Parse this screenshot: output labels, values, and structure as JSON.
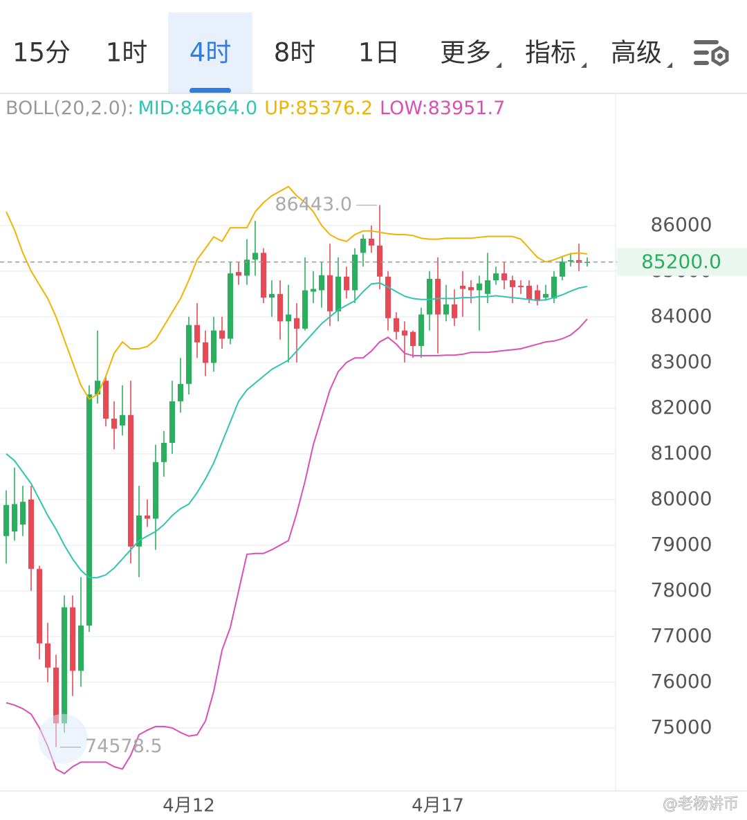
{
  "tabs": [
    {
      "label": "15分"
    },
    {
      "label": "1时"
    },
    {
      "label": "4时"
    },
    {
      "label": "8时"
    },
    {
      "label": "1日"
    },
    {
      "label": "更多",
      "dropdown": true
    },
    {
      "label": "指标",
      "dropdown": true
    },
    {
      "label": "高级",
      "dropdown": true
    }
  ],
  "active_tab": 2,
  "watermark": "@老杨讲币",
  "chart_data": {
    "type": "candlestick",
    "indicator": "BOLL(20,2.0):",
    "categories": [
      null,
      null,
      null,
      null,
      null,
      null,
      null,
      null,
      null,
      null,
      null,
      null,
      null,
      null,
      null,
      null,
      null,
      null,
      null,
      null,
      null,
      null,
      "4月12",
      null,
      null,
      null,
      null,
      null,
      null,
      null,
      null,
      null,
      null,
      null,
      null,
      null,
      null,
      null,
      null,
      null,
      null,
      null,
      null,
      null,
      null,
      null,
      null,
      null,
      null,
      null,
      null,
      null,
      "4月17",
      null,
      null,
      null,
      null,
      null,
      null,
      null,
      null,
      null,
      null,
      null,
      null,
      null,
      null,
      null,
      null,
      null,
      null
    ],
    "open": [
      79200,
      79300,
      79450,
      80000,
      78480,
      76850,
      76320,
      75100,
      77640,
      76250,
      77240,
      82300,
      82600,
      81770,
      81620,
      81850,
      78970,
      79650,
      79580,
      80820,
      81240,
      82150,
      82530,
      83820,
      83440,
      82990,
      83700,
      83520,
      84980,
      84900,
      85250,
      85400,
      84420,
      84500,
      83900,
      83970,
      83740,
      84550,
      84580,
      84910,
      84120,
      84880,
      84580,
      85400,
      85710,
      85560,
      84880,
      83970,
      83700,
      83670,
      83360,
      84050,
      84830,
      84050,
      84270,
      84680,
      84650,
      84580,
      84500,
      84800,
      84950,
      84800,
      84680,
      84680,
      84580,
      84420,
      84400,
      84880,
      85210,
      85240,
      85180
    ],
    "high": [
      80200,
      80700,
      80300,
      80300,
      78550,
      77300,
      76600,
      77900,
      77900,
      78300,
      82500,
      83700,
      82700,
      82150,
      82500,
      82600,
      80300,
      80000,
      81200,
      81500,
      82600,
      83100,
      84000,
      84300,
      83700,
      84000,
      84000,
      85200,
      85200,
      85700,
      86100,
      85500,
      84800,
      84800,
      84700,
      84300,
      85300,
      85000,
      85200,
      85600,
      85300,
      85100,
      85500,
      85800,
      86000,
      86443,
      85000,
      84100,
      83900,
      83700,
      84200,
      85000,
      85300,
      84700,
      84600,
      85000,
      84800,
      84900,
      85400,
      85100,
      85200,
      84900,
      84800,
      84800,
      84700,
      84700,
      85000,
      85300,
      85400,
      85600,
      85300
    ],
    "low": [
      78600,
      79100,
      79200,
      78000,
      76500,
      76000,
      74578.5,
      74900,
      75700,
      75900,
      77100,
      82100,
      81600,
      81100,
      81400,
      78600,
      78300,
      79400,
      78900,
      80500,
      81000,
      81900,
      82300,
      83100,
      82700,
      82800,
      83300,
      83400,
      84700,
      84700,
      84900,
      84300,
      84000,
      83500,
      83000,
      83000,
      83700,
      84300,
      84200,
      83800,
      83900,
      84400,
      84300,
      85100,
      85400,
      84600,
      83700,
      83500,
      83000,
      83100,
      83100,
      83700,
      83200,
      83900,
      83800,
      84000,
      84300,
      83700,
      84300,
      84700,
      84600,
      84300,
      84500,
      84300,
      84250,
      84350,
      84300,
      84800,
      85100,
      85000,
      85100
    ],
    "close": [
      79880,
      79900,
      79950,
      78480,
      76850,
      76320,
      75100,
      77640,
      76250,
      77240,
      82300,
      82600,
      81770,
      81550,
      81850,
      78970,
      79650,
      79580,
      80820,
      81240,
      82150,
      82530,
      83820,
      83440,
      82990,
      83700,
      83520,
      84950,
      84900,
      85250,
      85400,
      84420,
      84500,
      83900,
      84050,
      83740,
      84580,
      84610,
      84910,
      84120,
      84880,
      84580,
      85360,
      85710,
      85560,
      84880,
      83970,
      83670,
      83590,
      83360,
      84050,
      84830,
      84050,
      84270,
      83970,
      84610,
      84580,
      84730,
      84800,
      84950,
      84800,
      84650,
      84650,
      84380,
      84350,
      84500,
      84880,
      85210,
      85240,
      85180,
      85200
    ],
    "up_color": "#2aaf5e",
    "down_color": "#e84a55",
    "series": [
      {
        "label": "MID:84664.0",
        "color": "#2fc4b2",
        "values": [
          81000,
          80850,
          80600,
          80350,
          80000,
          79650,
          79350,
          79000,
          78700,
          78450,
          78290,
          78290,
          78350,
          78500,
          78700,
          78900,
          79100,
          79200,
          79300,
          79450,
          79650,
          79800,
          79900,
          80150,
          80450,
          80800,
          81250,
          81700,
          82150,
          82400,
          82550,
          82700,
          82850,
          82950,
          83050,
          83250,
          83450,
          83650,
          83850,
          84000,
          84150,
          84250,
          84350,
          84550,
          84720,
          84740,
          84650,
          84550,
          84450,
          84400,
          84380,
          84380,
          84400,
          84400,
          84400,
          84420,
          84420,
          84440,
          84440,
          84460,
          84440,
          84420,
          84400,
          84380,
          84360,
          84370,
          84420,
          84480,
          84560,
          84630,
          84664
        ]
      },
      {
        "label": "UP:85376.2",
        "color": "#f0b400",
        "values": [
          86300,
          85900,
          85400,
          85000,
          84700,
          84400,
          84000,
          83500,
          83000,
          82500,
          82200,
          82300,
          82700,
          83200,
          83450,
          83300,
          83300,
          83350,
          83500,
          83800,
          84100,
          84400,
          84800,
          85250,
          85500,
          85750,
          85650,
          85950,
          85950,
          85950,
          86300,
          86500,
          86650,
          86750,
          86850,
          86650,
          86500,
          86300,
          86000,
          85800,
          85700,
          85650,
          85800,
          85880,
          85880,
          85850,
          85820,
          85800,
          85800,
          85780,
          85720,
          85700,
          85700,
          85720,
          85720,
          85720,
          85720,
          85740,
          85760,
          85760,
          85760,
          85760,
          85700,
          85500,
          85300,
          85200,
          85250,
          85320,
          85380,
          85400,
          85376.2
        ]
      },
      {
        "label": "LOW:83951.7",
        "color": "#d94fb5",
        "values": [
          75550,
          75500,
          75420,
          75300,
          75000,
          74600,
          74100,
          74000,
          74150,
          74250,
          74250,
          74250,
          74250,
          74150,
          74100,
          74400,
          74850,
          74950,
          75030,
          75030,
          75000,
          74900,
          74820,
          74850,
          75150,
          75800,
          76700,
          77200,
          78000,
          78800,
          78820,
          78820,
          78900,
          79000,
          79100,
          79700,
          80400,
          81200,
          81800,
          82400,
          82800,
          83000,
          83100,
          83100,
          83250,
          83450,
          83550,
          83400,
          83200,
          83150,
          83150,
          83150,
          83150,
          83160,
          83160,
          83180,
          83220,
          83220,
          83220,
          83240,
          83260,
          83280,
          83300,
          83350,
          83400,
          83450,
          83470,
          83520,
          83600,
          83750,
          83951.7
        ]
      }
    ],
    "high_mark": {
      "value": 86443,
      "label": "86443.0"
    },
    "low_mark": {
      "value": 74578.5,
      "label": "74578.5"
    },
    "price_line": {
      "value": 85200,
      "label": "85200.0",
      "color": "#2aaf5e"
    },
    "ylim": [
      73620,
      88890
    ],
    "yticks": [
      75000,
      76000,
      77000,
      78000,
      79000,
      80000,
      81000,
      82000,
      83000,
      84000,
      85000,
      86000
    ],
    "grid": true
  }
}
